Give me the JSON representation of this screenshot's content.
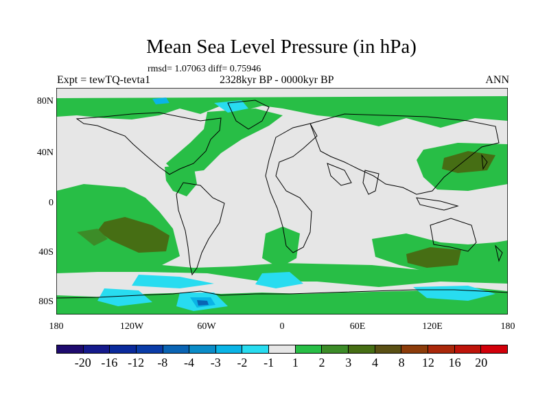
{
  "title": "Mean Sea Level Pressure (in hPa)",
  "stats": "rmsd= 1.07063 diff= 0.75946",
  "header": {
    "left": "Expt = tewTQ-tevta1",
    "center": "2328kyr BP - 0000kyr BP",
    "right": "ANN"
  },
  "axes": {
    "lat_labels": [
      "80N",
      "40N",
      "0",
      "40S",
      "80S"
    ],
    "lon_labels": [
      "180",
      "120W",
      "60W",
      "0",
      "60E",
      "120E",
      "180"
    ]
  },
  "colorbar": {
    "labels": [
      "-20",
      "-16",
      "-12",
      "-8",
      "-4",
      "-3",
      "-2",
      "-1",
      "1",
      "2",
      "3",
      "4",
      "8",
      "12",
      "16",
      "20"
    ],
    "colors": [
      "#1e0a6e",
      "#151a8c",
      "#0a2a9c",
      "#0a3ca8",
      "#0a64b4",
      "#0a8cc8",
      "#0ab4e6",
      "#28dcf0",
      "#e6e6e6",
      "#28be46",
      "#3c8c28",
      "#466e14",
      "#5a5014",
      "#8c3c0a",
      "#aa280a",
      "#be140a",
      "#d2000a"
    ]
  }
}
